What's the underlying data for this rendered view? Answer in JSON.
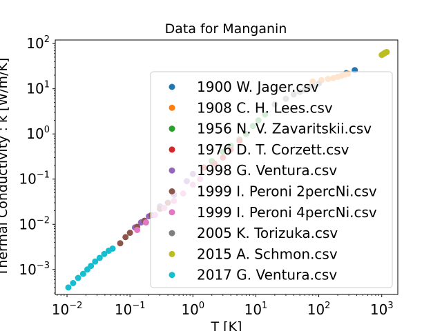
{
  "chart_data": {
    "type": "scatter",
    "title": "Data for Manganin",
    "xlabel": "T [K]",
    "ylabel": "Thermal Conductivity : k [W/m/K]",
    "xscale": "log",
    "yscale": "log",
    "xlim": [
      0.0065,
      1800
    ],
    "ylim": [
      0.00028,
      120
    ],
    "x_ticks": [
      {
        "value": 0.01,
        "base": "10",
        "exp": "−2"
      },
      {
        "value": 0.1,
        "base": "10",
        "exp": "−1"
      },
      {
        "value": 1,
        "base": "10",
        "exp": "0"
      },
      {
        "value": 10,
        "base": "10",
        "exp": "1"
      },
      {
        "value": 100,
        "base": "10",
        "exp": "2"
      },
      {
        "value": 1000,
        "base": "10",
        "exp": "3"
      }
    ],
    "y_ticks": [
      {
        "value": 0.001,
        "base": "10",
        "exp": "−3"
      },
      {
        "value": 0.01,
        "base": "10",
        "exp": "−2"
      },
      {
        "value": 0.1,
        "base": "10",
        "exp": "−1"
      },
      {
        "value": 1,
        "base": "10",
        "exp": "0"
      },
      {
        "value": 10,
        "base": "10",
        "exp": "1"
      },
      {
        "value": 100,
        "base": "10",
        "exp": "2"
      }
    ],
    "legend_position": "right",
    "series": [
      {
        "name": "1900 W. Jager.csv",
        "color": "#1f77b4",
        "points": [
          [
            273,
            22.2
          ],
          [
            373,
            25.8
          ]
        ]
      },
      {
        "name": "1908 C. H. Lees.csv",
        "color": "#ff7f0e",
        "points": [
          [
            80,
            14.5
          ],
          [
            110,
            15.5
          ],
          [
            140,
            16.5
          ],
          [
            170,
            17.2
          ],
          [
            200,
            18.3
          ],
          [
            230,
            19.5
          ],
          [
            260,
            20.5
          ],
          [
            290,
            21.5
          ]
        ]
      },
      {
        "name": "1956 N. V. Zavaritskii.csv",
        "color": "#2ca02c",
        "points": [
          [
            2.0,
            0.25
          ],
          [
            3.0,
            0.4
          ],
          [
            4.0,
            0.55
          ],
          [
            5.5,
            0.75
          ],
          [
            7.0,
            1.0
          ],
          [
            9.0,
            1.5
          ],
          [
            11,
            2.0
          ],
          [
            14,
            2.7
          ]
        ]
      },
      {
        "name": "1976 D. T. Corzett.csv",
        "color": "#d62728",
        "points": [
          [
            1.5,
            0.18
          ],
          [
            2.2,
            0.22
          ],
          [
            3.0,
            0.3
          ],
          [
            4.0,
            0.45
          ],
          [
            5.5,
            0.7
          ]
        ]
      },
      {
        "name": "1998 G. Ventura.csv",
        "color": "#9467bd",
        "points": [
          [
            0.12,
            0.0085
          ],
          [
            0.15,
            0.011
          ],
          [
            0.2,
            0.015
          ],
          [
            0.3,
            0.025
          ],
          [
            0.5,
            0.045
          ],
          [
            0.8,
            0.09
          ],
          [
            1.0,
            0.13
          ]
        ]
      },
      {
        "name": "1999 I. Peroni 2percNi.csv",
        "color": "#8c564b",
        "points": [
          [
            0.07,
            0.0038
          ],
          [
            0.085,
            0.0052
          ],
          [
            0.1,
            0.0065
          ],
          [
            0.13,
            0.0088
          ],
          [
            0.17,
            0.012
          ],
          [
            0.22,
            0.016
          ],
          [
            0.3,
            0.022
          ],
          [
            0.4,
            0.03
          ]
        ]
      },
      {
        "name": "1999 I. Peroni 4percNi.csv",
        "color": "#e377c2",
        "points": [
          [
            0.13,
            0.0075
          ],
          [
            0.18,
            0.011
          ],
          [
            0.25,
            0.016
          ],
          [
            0.35,
            0.023
          ],
          [
            0.5,
            0.033
          ],
          [
            0.7,
            0.048
          ],
          [
            1.0,
            0.075
          ],
          [
            1.3,
            0.1
          ]
        ]
      },
      {
        "name": "2005 K. Torizuka.csv",
        "color": "#7f7f7f",
        "points": [
          [
            20,
            4.5
          ],
          [
            30,
            6.0
          ],
          [
            40,
            7.5
          ],
          [
            50,
            8.5
          ],
          [
            60,
            9.5
          ],
          [
            70,
            10.5
          ],
          [
            80,
            11.5
          ],
          [
            100,
            13.0
          ]
        ]
      },
      {
        "name": "2015 A. Schmon.csv",
        "color": "#bcbd22",
        "points": [
          [
            1000,
            56
          ],
          [
            1040,
            58
          ],
          [
            1080,
            60
          ],
          [
            1110,
            61
          ],
          [
            1140,
            63
          ],
          [
            1170,
            64
          ],
          [
            1200,
            65
          ]
        ]
      },
      {
        "name": "2017 G. Ventura.csv",
        "color": "#17becf",
        "points": [
          [
            0.0105,
            0.0004
          ],
          [
            0.0125,
            0.0005
          ],
          [
            0.015,
            0.00065
          ],
          [
            0.018,
            0.0008
          ],
          [
            0.021,
            0.001
          ],
          [
            0.024,
            0.0012
          ],
          [
            0.028,
            0.0015
          ],
          [
            0.033,
            0.0018
          ],
          [
            0.039,
            0.0022
          ],
          [
            0.046,
            0.0026
          ],
          [
            0.053,
            0.0029
          ]
        ]
      }
    ]
  }
}
